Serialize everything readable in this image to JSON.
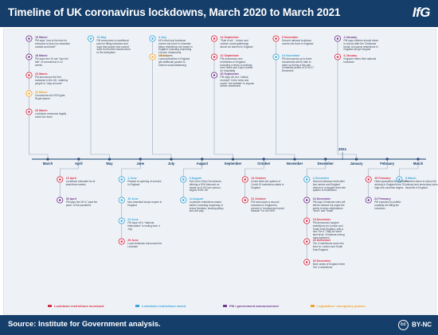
{
  "header": {
    "title": "Timeline of UK coronavirus lockdowns, March 2020 to March 2021",
    "logo": "IfG"
  },
  "footer": {
    "source": "Source: Institute for Government analysis.",
    "licence": "BY-NC",
    "licence_badge": "cc"
  },
  "colors": {
    "accent": "#163e6a",
    "eased": "#d9304a",
    "tightened": "#3aa5d8",
    "announcement": "#6e3b8c",
    "legislation": "#f2a22c",
    "connector_default": "#9aa6b8"
  },
  "legend": [
    {
      "label": "Lockdown restrictions increased",
      "color": "#d9304a"
    },
    {
      "label": "Lockdown restrictions eased",
      "color": "#3aa5d8"
    },
    {
      "label": "PM / government announcement",
      "color": "#6e3b8c"
    },
    {
      "label": "Legislation / emergency powers",
      "color": "#f2a22c"
    }
  ],
  "timeline": {
    "start_year_label": "2020",
    "end_year_label": "2021",
    "months": [
      "March",
      "April",
      "May",
      "June",
      "July",
      "August",
      "September",
      "October",
      "November",
      "December",
      "January",
      "February",
      "March"
    ],
    "year_boundary_after": "December"
  },
  "events": [
    {
      "id": "mar16",
      "month": "March",
      "side": "above",
      "date": "16 March",
      "text": "PM says \"now is the time for everyone to stop non-essential contact and travel\"",
      "color": "#6e3b8c",
      "icon": "speech-icon"
    },
    {
      "id": "mar18",
      "month": "March",
      "side": "above",
      "date": "18 March",
      "text": "PM says the UK can \"turn the tide\" of coronavirus in 12 weeks",
      "color": "#6e3b8c",
      "icon": "speech-icon"
    },
    {
      "id": "mar23",
      "month": "March",
      "side": "above",
      "date": "23 March",
      "text": "PM announces the first lockdown in the UK, ordering people to \"stay at home\"",
      "color": "#d9304a",
      "icon": "house-icon"
    },
    {
      "id": "mar25",
      "month": "March",
      "side": "above",
      "date": "25 March",
      "text": "Coronavirus Act 2020 gets Royal Assent",
      "color": "#f2a22c",
      "icon": "document-icon"
    },
    {
      "id": "mar26",
      "month": "March",
      "side": "above",
      "date": "26 March",
      "text": "Lockdown measures legally come into force",
      "color": "#d9304a",
      "icon": "lock-icon"
    },
    {
      "id": "apr16",
      "month": "April",
      "side": "below",
      "date": "16 April",
      "text": "Lockdown extended for at least three weeks",
      "color": "#d9304a",
      "icon": "lock-icon"
    },
    {
      "id": "apr30",
      "month": "April",
      "side": "below",
      "date": "30 April",
      "text": "PM says the UK is \"past the peak\" of the pandemic",
      "color": "#6e3b8c",
      "icon": "speech-icon"
    },
    {
      "id": "may10",
      "month": "May",
      "side": "above",
      "date": "10 May",
      "text": "PM announces a conditional plan for lifting lockdown and says that people who cannot work from home should return to the workplace",
      "color": "#3aa5d8",
      "icon": "speech-icon"
    },
    {
      "id": "jun1",
      "month": "June",
      "side": "below",
      "date": "1 June",
      "text": "Phased re-opening of schools in England",
      "color": "#3aa5d8",
      "icon": "school-icon"
    },
    {
      "id": "jun15",
      "month": "June",
      "side": "below",
      "date": "15 June",
      "text": "Non-essential shops reopen in England",
      "color": "#3aa5d8",
      "icon": "shop-icon"
    },
    {
      "id": "jun23",
      "month": "June",
      "side": "below",
      "date": "23 June",
      "text": "PM says UK's \"national hibernation\" is ending from 4 July",
      "color": "#3aa5d8",
      "icon": "speech-icon"
    },
    {
      "id": "jun29",
      "month": "June",
      "side": "below",
      "date": "29 June",
      "text": "Local lockdown announced for Leicester",
      "color": "#d9304a",
      "icon": "lock-icon"
    },
    {
      "id": "jul4",
      "month": "July",
      "side": "above",
      "date": "4 July",
      "text": "UK's first local lockdown comes into force in Leicester. Many restrictions are eased in England, including reopening of pubs, restaurants, hairdressers",
      "color": "#3aa5d8",
      "icon": "pub-icon"
    },
    {
      "id": "jul18",
      "month": "July",
      "side": "above",
      "date": "18 July",
      "text": "Local authorities in England get additional powers to enforce social distancing",
      "color": "#f2a22c",
      "icon": "document-icon"
    },
    {
      "id": "aug3",
      "month": "August",
      "side": "below",
      "date": "3 August",
      "text": "Eat Out to Help Out scheme, offering a 50% discount on meals up to £10 per person, begins in the UK",
      "color": "#3aa5d8",
      "icon": "plate-icon"
    },
    {
      "id": "aug14",
      "month": "August",
      "side": "below",
      "date": "14 August",
      "text": "Lockdown restrictions eased further, including reopening of indoor theatres, bowling alleys and soft play",
      "color": "#3aa5d8",
      "icon": "theatre-icon"
    },
    {
      "id": "sep14",
      "month": "September",
      "side": "above",
      "date": "14 September",
      "text": "\"Rule of six\" - indoor and outdoor social gatherings above six banned in England",
      "color": "#d9304a",
      "icon": "people-icon"
    },
    {
      "id": "sep22",
      "month": "September",
      "side": "above",
      "date": "22 September",
      "text": "PM announces new restrictions in England, including a return to working from home and 10pm curfew for hospitality",
      "color": "#d9304a",
      "icon": "speech-icon"
    },
    {
      "id": "sep30",
      "month": "September",
      "side": "above",
      "date": "30 September",
      "text": "PM says UK at a \"critical moment\" in the crisis and would \"not hesitate\" to impose further restrictions",
      "color": "#6e3b8c",
      "icon": "speech-icon"
    },
    {
      "id": "oct14",
      "month": "October",
      "side": "below",
      "date": "14 October",
      "text": "A new three-tier system of Covid-19 restrictions starts in England",
      "color": "#d9304a",
      "icon": "tiers-icon"
    },
    {
      "id": "oct31",
      "month": "October",
      "side": "below",
      "date": "31 October",
      "text": "PM announces a second lockdown in England to prevent a \"medical and moral disaster\" for the NHS",
      "color": "#d9304a",
      "icon": "house-icon"
    },
    {
      "id": "nov5",
      "month": "November",
      "side": "above",
      "date": "5 November",
      "text": "Second national lockdown comes into force in England",
      "color": "#d9304a",
      "icon": "lock-icon"
    },
    {
      "id": "nov24",
      "month": "November",
      "side": "above",
      "date": "24 November",
      "text": "PM announces up to three households will be able to meet up during a five-day Christmas period of 23 to 27 December",
      "color": "#3aa5d8",
      "icon": "tree-icon"
    },
    {
      "id": "dec2",
      "month": "December",
      "side": "below",
      "date": "2 December",
      "text": "Second lockdown ends after four weeks and England returns to a tougher three-tier system of restrictions",
      "color": "#3aa5d8",
      "icon": "tiers-icon"
    },
    {
      "id": "dec16",
      "month": "December",
      "side": "below",
      "date": "16 December",
      "text": "PM says Christmas rules will still be relaxed but urges the public to keep celebrations \"short\" and \"small\"",
      "color": "#6e3b8c",
      "icon": "speech-icon"
    },
    {
      "id": "dec19",
      "month": "December",
      "side": "below",
      "date": "19 December",
      "text": "PM announces tougher restrictions for London and South East England, with a new Tier 4 \"Stay at Home\" alert level. Christmas mixing rules tightened",
      "color": "#d9304a",
      "icon": "house-icon"
    },
    {
      "id": "dec26",
      "month": "December",
      "side": "below",
      "date": "26 December",
      "text": "Tier 4 restrictions come into force in London and South East England",
      "color": "#d9304a",
      "icon": "lock-icon"
    },
    {
      "id": "dec30",
      "month": "December",
      "side": "below",
      "date": "30 December",
      "text": "More areas of England enter Tier 4 restrictions",
      "color": "#d9304a",
      "icon": "lock-icon"
    },
    {
      "id": "jan4",
      "month": "January",
      "side": "above",
      "date": "4 January",
      "text": "PM says children should return to school after the Christmas break, but warns restrictions in England will get tougher",
      "color": "#6e3b8c",
      "icon": "speech-icon"
    },
    {
      "id": "jan6",
      "month": "January",
      "side": "above",
      "date": "6 January",
      "text": "England enters third national lockdown",
      "color": "#d9304a",
      "icon": "lock-icon"
    },
    {
      "id": "feb15",
      "month": "February",
      "side": "below",
      "date": "15 February",
      "text": "Hotel quarantine for travellers arriving in England from 33 high-risk countries begins",
      "color": "#d9304a",
      "icon": "plane-icon"
    },
    {
      "id": "feb22",
      "month": "February",
      "side": "below",
      "date": "22 February",
      "text": "PM expected to publish roadmap for lifting the lockdown",
      "color": "#6e3b8c",
      "icon": "speech-icon"
    },
    {
      "id": "mar8",
      "month": "March",
      "side": "below",
      "date": "8 March",
      "text": "Planned return to school for primary and secondary school students in England",
      "color": "#3aa5d8",
      "icon": "school-icon"
    }
  ]
}
